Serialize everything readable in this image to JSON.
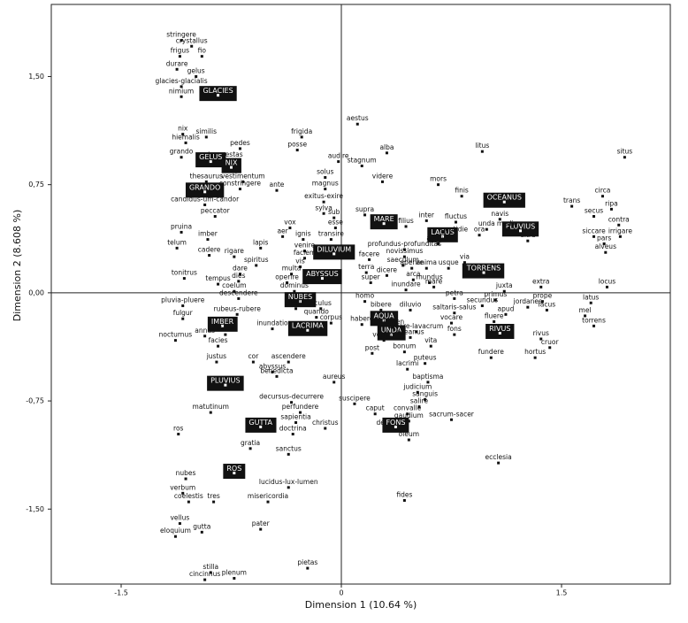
{
  "chart_data": {
    "type": "scatter",
    "x_label": "Dimension 1 (10.64 %)",
    "y_label": "Dimension 2 (8.608 %)",
    "xlim": [
      -1.976,
      2.241
    ],
    "ylim": [
      -2.02,
      2.0
    ],
    "xticks": [
      -1.5,
      0,
      1.5
    ],
    "yticks": [
      {
        "value": 1.5,
        "label": "1,50"
      },
      {
        "value": 0.75,
        "label": "0,75"
      },
      {
        "value": 0,
        "label": "0,00"
      },
      {
        "value": -0.75,
        "label": "-0,75"
      },
      {
        "value": -1.5,
        "label": "-1,50"
      }
    ],
    "color": "#111111",
    "points": [
      {
        "label": "stringere",
        "x": -1.09,
        "y": 1.75
      },
      {
        "label": "crystallus",
        "x": -1.02,
        "y": 1.71
      },
      {
        "label": "frigus",
        "x": -1.1,
        "y": 1.64
      },
      {
        "label": "fio",
        "x": -0.95,
        "y": 1.64
      },
      {
        "label": "durare",
        "x": -1.12,
        "y": 1.55
      },
      {
        "label": "gelus",
        "x": -0.99,
        "y": 1.5
      },
      {
        "label": "glacies-glacialis",
        "x": -1.09,
        "y": 1.43
      },
      {
        "label": "nimium",
        "x": -1.09,
        "y": 1.36
      },
      {
        "label": "GLACIES",
        "x": -0.84,
        "y": 1.37
      },
      {
        "label": "aestus",
        "x": 0.11,
        "y": 1.17
      },
      {
        "label": "frigida",
        "x": -0.27,
        "y": 1.08
      },
      {
        "label": "nix",
        "x": -1.08,
        "y": 1.1
      },
      {
        "label": "similis",
        "x": -0.92,
        "y": 1.08
      },
      {
        "label": "pedes",
        "x": -0.69,
        "y": 1.0
      },
      {
        "label": "posse",
        "x": -0.3,
        "y": 0.99
      },
      {
        "label": "hiemalis",
        "x": -1.06,
        "y": 1.04
      },
      {
        "label": "alba",
        "x": 0.31,
        "y": 0.97
      },
      {
        "label": "grando",
        "x": -1.09,
        "y": 0.94
      },
      {
        "label": "tempestas",
        "x": -0.79,
        "y": 0.92
      },
      {
        "label": "GELUS",
        "x": -0.89,
        "y": 0.91
      },
      {
        "label": "NIX",
        "x": -0.75,
        "y": 0.87
      },
      {
        "label": "audire",
        "x": -0.02,
        "y": 0.91
      },
      {
        "label": "stagnum",
        "x": 0.14,
        "y": 0.88
      },
      {
        "label": "litus",
        "x": 0.96,
        "y": 0.98
      },
      {
        "label": "situs",
        "x": 1.93,
        "y": 0.94
      },
      {
        "label": "thesaurus",
        "x": -0.92,
        "y": 0.77
      },
      {
        "label": "vestimentum",
        "x": -0.67,
        "y": 0.77
      },
      {
        "label": "constringere",
        "x": -0.69,
        "y": 0.72
      },
      {
        "label": "solus",
        "x": -0.11,
        "y": 0.8
      },
      {
        "label": "videre",
        "x": 0.28,
        "y": 0.77
      },
      {
        "label": "mors",
        "x": 0.66,
        "y": 0.75
      },
      {
        "label": "finis",
        "x": 0.82,
        "y": 0.67
      },
      {
        "label": "circa",
        "x": 1.78,
        "y": 0.67
      },
      {
        "label": "GRANDO",
        "x": -0.93,
        "y": 0.7
      },
      {
        "label": "candidus-um-candor",
        "x": -0.93,
        "y": 0.61
      },
      {
        "label": "ante",
        "x": -0.44,
        "y": 0.71
      },
      {
        "label": "magnus",
        "x": -0.11,
        "y": 0.72
      },
      {
        "label": "exitus-exire",
        "x": -0.12,
        "y": 0.63
      },
      {
        "label": "OCEANUS",
        "x": 1.11,
        "y": 0.63
      },
      {
        "label": "trans",
        "x": 1.57,
        "y": 0.6
      },
      {
        "label": "ripa",
        "x": 1.84,
        "y": 0.58
      },
      {
        "label": "sylva",
        "x": -0.12,
        "y": 0.55
      },
      {
        "label": "sub",
        "x": -0.05,
        "y": 0.52
      },
      {
        "label": "supra",
        "x": 0.16,
        "y": 0.54
      },
      {
        "label": "MARE",
        "x": 0.29,
        "y": 0.48
      },
      {
        "label": "FLUVIUS",
        "x": 1.22,
        "y": 0.43
      },
      {
        "label": "navis",
        "x": 1.08,
        "y": 0.51
      },
      {
        "label": "secus",
        "x": 1.72,
        "y": 0.53
      },
      {
        "label": "peccator",
        "x": -0.86,
        "y": 0.53
      },
      {
        "label": "fluctus",
        "x": 0.78,
        "y": 0.49
      },
      {
        "label": "unda",
        "x": 0.99,
        "y": 0.44
      },
      {
        "label": "medio",
        "x": 1.13,
        "y": 0.44
      },
      {
        "label": "filius",
        "x": 0.44,
        "y": 0.46
      },
      {
        "label": "inter",
        "x": 0.58,
        "y": 0.5
      },
      {
        "label": "pruina",
        "x": -1.09,
        "y": 0.42
      },
      {
        "label": "imber",
        "x": -0.91,
        "y": 0.37
      },
      {
        "label": "vox",
        "x": -0.35,
        "y": 0.45
      },
      {
        "label": "aer",
        "x": -0.4,
        "y": 0.39
      },
      {
        "label": "ignis",
        "x": -0.26,
        "y": 0.37
      },
      {
        "label": "esse",
        "x": -0.04,
        "y": 0.45
      },
      {
        "label": "transire",
        "x": -0.07,
        "y": 0.37
      },
      {
        "label": "LACUS",
        "x": 0.69,
        "y": 0.39
      },
      {
        "label": "quotidie",
        "x": 0.77,
        "y": 0.4
      },
      {
        "label": "ora",
        "x": 0.94,
        "y": 0.4
      },
      {
        "label": "aequor",
        "x": 0.66,
        "y": 0.34
      },
      {
        "label": "telum",
        "x": -1.12,
        "y": 0.31
      },
      {
        "label": "cadere",
        "x": -0.9,
        "y": 0.26
      },
      {
        "label": "rigare",
        "x": -0.73,
        "y": 0.25
      },
      {
        "label": "lapis",
        "x": -0.55,
        "y": 0.31
      },
      {
        "label": "venire",
        "x": -0.25,
        "y": 0.29
      },
      {
        "label": "faciem",
        "x": -0.25,
        "y": 0.24
      },
      {
        "label": "DILUVIUM",
        "x": -0.05,
        "y": 0.27
      },
      {
        "label": "profundus-profunditas",
        "x": 0.43,
        "y": 0.3
      },
      {
        "label": "novissimus",
        "x": 0.43,
        "y": 0.25
      },
      {
        "label": "saeculum",
        "x": 0.42,
        "y": 0.19
      },
      {
        "label": "facere",
        "x": 0.19,
        "y": 0.23
      },
      {
        "label": "spiritus",
        "x": -0.58,
        "y": 0.19
      },
      {
        "label": "vis",
        "x": -0.28,
        "y": 0.18
      },
      {
        "label": "ultra",
        "x": 1.27,
        "y": 0.36
      },
      {
        "label": "siccare",
        "x": 1.72,
        "y": 0.39
      },
      {
        "label": "irrigare",
        "x": 1.9,
        "y": 0.39
      },
      {
        "label": "contra",
        "x": 1.89,
        "y": 0.47
      },
      {
        "label": "pars",
        "x": 1.79,
        "y": 0.34
      },
      {
        "label": "alveus",
        "x": 1.8,
        "y": 0.28
      },
      {
        "label": "tonitrus",
        "x": -1.07,
        "y": 0.1
      },
      {
        "label": "dare",
        "x": -0.69,
        "y": 0.13
      },
      {
        "label": "multa",
        "x": -0.34,
        "y": 0.13
      },
      {
        "label": "aperire",
        "x": 0.48,
        "y": 0.17
      },
      {
        "label": "anima",
        "x": 0.58,
        "y": 0.17
      },
      {
        "label": "usque",
        "x": 0.73,
        "y": 0.17
      },
      {
        "label": "via",
        "x": 0.84,
        "y": 0.21
      },
      {
        "label": "tempus",
        "x": -0.84,
        "y": 0.06
      },
      {
        "label": "dies",
        "x": -0.7,
        "y": 0.08
      },
      {
        "label": "operire",
        "x": -0.37,
        "y": 0.07
      },
      {
        "label": "deus",
        "x": -0.17,
        "y": 0.07
      },
      {
        "label": "ABYSSUS",
        "x": -0.13,
        "y": 0.1
      },
      {
        "label": "terra",
        "x": 0.17,
        "y": 0.14
      },
      {
        "label": "dicere",
        "x": 0.31,
        "y": 0.12
      },
      {
        "label": "super",
        "x": 0.2,
        "y": 0.07
      },
      {
        "label": "TORRENS",
        "x": 0.97,
        "y": 0.14
      },
      {
        "label": "arca",
        "x": 0.49,
        "y": 0.09
      },
      {
        "label": "mundus",
        "x": 0.6,
        "y": 0.07
      },
      {
        "label": "coelum",
        "x": -0.73,
        "y": 0.01
      },
      {
        "label": "dominus",
        "x": -0.32,
        "y": 0.01
      },
      {
        "label": "inundare",
        "x": 0.44,
        "y": 0.02
      },
      {
        "label": "mare",
        "x": 0.63,
        "y": 0.04
      },
      {
        "label": "extra",
        "x": 1.36,
        "y": 0.04
      },
      {
        "label": "locus",
        "x": 1.81,
        "y": 0.04
      },
      {
        "label": "NUBES",
        "x": -0.28,
        "y": -0.06
      },
      {
        "label": "stella",
        "x": -0.31,
        "y": -0.11
      },
      {
        "label": "oculus",
        "x": -0.14,
        "y": -0.11
      },
      {
        "label": "homo",
        "x": 0.16,
        "y": -0.06
      },
      {
        "label": "descendere",
        "x": -0.7,
        "y": -0.04
      },
      {
        "label": "pluvia-pluere",
        "x": -1.08,
        "y": -0.09
      },
      {
        "label": "petra",
        "x": 0.77,
        "y": -0.04
      },
      {
        "label": "primus",
        "x": 1.05,
        "y": -0.05
      },
      {
        "label": "juxta",
        "x": 1.11,
        "y": 0.01
      },
      {
        "label": "prope",
        "x": 1.37,
        "y": -0.06
      },
      {
        "label": "jordanes",
        "x": 1.27,
        "y": -0.1
      },
      {
        "label": "secundus",
        "x": 0.96,
        "y": -0.09
      },
      {
        "label": "latus",
        "x": 1.7,
        "y": -0.07
      },
      {
        "label": "lacus",
        "x": 1.4,
        "y": -0.12
      },
      {
        "label": "mel",
        "x": 1.66,
        "y": -0.16
      },
      {
        "label": "rubeus-rubere",
        "x": -0.71,
        "y": -0.15
      },
      {
        "label": "LACRIMA",
        "x": -0.23,
        "y": -0.26
      },
      {
        "label": "quando",
        "x": -0.17,
        "y": -0.17
      },
      {
        "label": "corpus",
        "x": -0.07,
        "y": -0.21
      },
      {
        "label": "bibere",
        "x": 0.27,
        "y": -0.12
      },
      {
        "label": "AQUA",
        "x": 0.29,
        "y": -0.19
      },
      {
        "label": "UNDA",
        "x": 0.34,
        "y": -0.29
      },
      {
        "label": "diluvio",
        "x": 0.47,
        "y": -0.12
      },
      {
        "label": "saltaris-salus",
        "x": 0.77,
        "y": -0.14
      },
      {
        "label": "apud",
        "x": 1.12,
        "y": -0.15
      },
      {
        "label": "fulgur",
        "x": -1.08,
        "y": -0.18
      },
      {
        "label": "IMBER",
        "x": -0.81,
        "y": -0.23
      },
      {
        "label": "vinea",
        "x": -0.79,
        "y": -0.29
      },
      {
        "label": "annus",
        "x": -0.93,
        "y": -0.3
      },
      {
        "label": "inundatio",
        "x": -0.47,
        "y": -0.25
      },
      {
        "label": "habere",
        "x": 0.14,
        "y": -0.22
      },
      {
        "label": "flumen",
        "x": 0.35,
        "y": -0.24
      },
      {
        "label": "vocare",
        "x": 0.75,
        "y": -0.21
      },
      {
        "label": "torrens",
        "x": 1.72,
        "y": -0.23
      },
      {
        "label": "fluere",
        "x": 1.04,
        "y": -0.2
      },
      {
        "label": "nocturnus",
        "x": -1.13,
        "y": -0.33
      },
      {
        "label": "facies",
        "x": -0.84,
        "y": -0.37
      },
      {
        "label": "veritas",
        "x": 0.29,
        "y": -0.33
      },
      {
        "label": "oceanus",
        "x": 0.47,
        "y": -0.31
      },
      {
        "label": "lavare-lavacrum",
        "x": 0.51,
        "y": -0.27
      },
      {
        "label": "fons",
        "x": 0.77,
        "y": -0.29
      },
      {
        "label": "vita",
        "x": 0.61,
        "y": -0.37
      },
      {
        "label": "RIVUS",
        "x": 1.08,
        "y": -0.28
      },
      {
        "label": "rivus",
        "x": 1.36,
        "y": -0.32
      },
      {
        "label": "cruor",
        "x": 1.42,
        "y": -0.38
      },
      {
        "label": "hortus",
        "x": 1.32,
        "y": -0.45
      },
      {
        "label": "post",
        "x": 0.21,
        "y": -0.42
      },
      {
        "label": "bonum",
        "x": 0.43,
        "y": -0.41
      },
      {
        "label": "fundere",
        "x": 1.02,
        "y": -0.45
      },
      {
        "label": "justus",
        "x": -0.85,
        "y": -0.48
      },
      {
        "label": "cor",
        "x": -0.6,
        "y": -0.48
      },
      {
        "label": "ascendere",
        "x": -0.36,
        "y": -0.48
      },
      {
        "label": "puteus",
        "x": 0.57,
        "y": -0.49
      },
      {
        "label": "abyssus",
        "x": -0.47,
        "y": -0.55
      },
      {
        "label": "aureus",
        "x": -0.05,
        "y": -0.62
      },
      {
        "label": "benedicta",
        "x": -0.44,
        "y": -0.58
      },
      {
        "label": "lacrimi",
        "x": 0.45,
        "y": -0.53
      },
      {
        "label": "baptisma",
        "x": 0.59,
        "y": -0.62
      },
      {
        "label": "PLUVIUS",
        "x": -0.79,
        "y": -0.64
      },
      {
        "label": "judicium",
        "x": 0.52,
        "y": -0.69
      },
      {
        "label": "sanguis",
        "x": 0.57,
        "y": -0.74
      },
      {
        "label": "decursus-decurrere",
        "x": -0.34,
        "y": -0.76
      },
      {
        "label": "perfundere",
        "x": -0.28,
        "y": -0.83
      },
      {
        "label": "suscipere",
        "x": 0.09,
        "y": -0.77
      },
      {
        "label": "salire",
        "x": 0.53,
        "y": -0.79
      },
      {
        "label": "matutinum",
        "x": -0.89,
        "y": -0.83
      },
      {
        "label": "caput",
        "x": 0.23,
        "y": -0.84
      },
      {
        "label": "convalle",
        "x": 0.45,
        "y": -0.84
      },
      {
        "label": "gaudium",
        "x": 0.46,
        "y": -0.89
      },
      {
        "label": "sacrum-sacer",
        "x": 0.75,
        "y": -0.88
      },
      {
        "label": "sapientia",
        "x": -0.31,
        "y": -0.9
      },
      {
        "label": "christus",
        "x": -0.11,
        "y": -0.94
      },
      {
        "label": "desuper",
        "x": 0.33,
        "y": -0.94
      },
      {
        "label": "GUTTA",
        "x": -0.55,
        "y": -0.93
      },
      {
        "label": "FONS",
        "x": 0.37,
        "y": -0.93
      },
      {
        "label": "ros",
        "x": -1.11,
        "y": -0.98
      },
      {
        "label": "doctrina",
        "x": -0.33,
        "y": -0.98
      },
      {
        "label": "oleum",
        "x": 0.46,
        "y": -1.02
      },
      {
        "label": "gratia",
        "x": -0.62,
        "y": -1.08
      },
      {
        "label": "sanctus",
        "x": -0.36,
        "y": -1.12
      },
      {
        "label": "ecclesia",
        "x": 1.07,
        "y": -1.18
      },
      {
        "label": "nubes",
        "x": -1.06,
        "y": -1.29
      },
      {
        "label": "lucidus-lux-lumen",
        "x": -0.36,
        "y": -1.35
      },
      {
        "label": "verbum",
        "x": -1.08,
        "y": -1.39
      },
      {
        "label": "coelestis",
        "x": -1.04,
        "y": -1.45
      },
      {
        "label": "ROS",
        "x": -0.73,
        "y": -1.25
      },
      {
        "label": "tres",
        "x": -0.87,
        "y": -1.45
      },
      {
        "label": "misericordia",
        "x": -0.5,
        "y": -1.45
      },
      {
        "label": "fides",
        "x": 0.43,
        "y": -1.44
      },
      {
        "label": "vellus",
        "x": -1.1,
        "y": -1.6
      },
      {
        "label": "gutta",
        "x": -0.95,
        "y": -1.66
      },
      {
        "label": "eloquium",
        "x": -1.13,
        "y": -1.69
      },
      {
        "label": "pater",
        "x": -0.55,
        "y": -1.64
      },
      {
        "label": "pietas",
        "x": -0.23,
        "y": -1.91
      },
      {
        "label": "stilla",
        "x": -0.89,
        "y": -1.94
      },
      {
        "label": "plenum",
        "x": -0.73,
        "y": -1.98
      },
      {
        "label": "cincinnus",
        "x": -0.93,
        "y": -1.99
      }
    ]
  }
}
